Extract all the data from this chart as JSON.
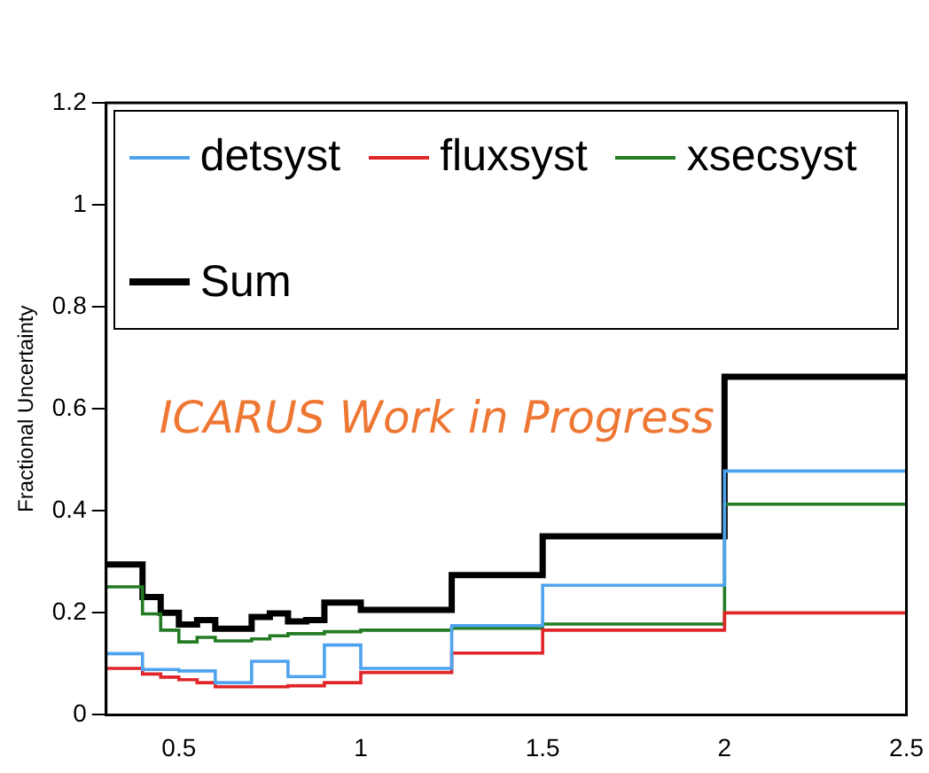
{
  "chart_data": {
    "type": "histogram",
    "ylabel": "Fractional Uncertainty",
    "bins": [
      0.3,
      0.35,
      0.4,
      0.45,
      0.5,
      0.55,
      0.6,
      0.65,
      0.7,
      0.75,
      0.8,
      0.85,
      0.9,
      0.95,
      1.0,
      1.25,
      1.5,
      2.0,
      2.5
    ],
    "series": [
      {
        "name": "detsyst",
        "color": "#4fa3ee",
        "values": [
          0.12,
          0.12,
          0.089,
          0.089,
          0.086,
          0.086,
          0.063,
          0.063,
          0.105,
          0.105,
          0.075,
          0.075,
          0.137,
          0.137,
          0.091,
          0.175,
          0.254,
          0.478
        ]
      },
      {
        "name": "fluxsyst",
        "color": "#e0262a",
        "values": [
          0.091,
          0.091,
          0.08,
          0.074,
          0.069,
          0.063,
          0.055,
          0.055,
          0.055,
          0.055,
          0.057,
          0.057,
          0.063,
          0.063,
          0.083,
          0.121,
          0.166,
          0.2
        ]
      },
      {
        "name": "xsecsyst",
        "color": "#237b23",
        "values": [
          0.251,
          0.251,
          0.198,
          0.166,
          0.143,
          0.152,
          0.145,
          0.145,
          0.149,
          0.155,
          0.159,
          0.159,
          0.163,
          0.163,
          0.166,
          0.17,
          0.178,
          0.413
        ]
      },
      {
        "name": "Sum",
        "color": "#000000",
        "values": [
          0.295,
          0.295,
          0.231,
          0.2,
          0.177,
          0.186,
          0.169,
          0.169,
          0.192,
          0.199,
          0.183,
          0.186,
          0.22,
          0.22,
          0.206,
          0.274,
          0.35,
          0.663
        ]
      }
    ],
    "xlim": [
      0.3,
      2.5
    ],
    "xticks": [
      0.5,
      1,
      1.5,
      2,
      2.5
    ],
    "ylim": [
      0,
      1.2
    ],
    "yticks": [
      0,
      0.2,
      0.4,
      0.6,
      0.8,
      1,
      1.2
    ],
    "legend": "top",
    "grid": false,
    "annotations": [
      "ICARUS Work in Progress"
    ]
  }
}
